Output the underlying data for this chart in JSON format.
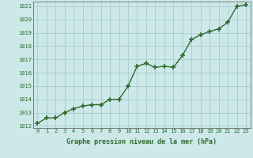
{
  "x": [
    0,
    1,
    2,
    3,
    4,
    5,
    6,
    7,
    8,
    9,
    10,
    11,
    12,
    13,
    14,
    15,
    16,
    17,
    18,
    19,
    20,
    21,
    22,
    23
  ],
  "y": [
    1012.2,
    1012.6,
    1012.6,
    1013.0,
    1013.3,
    1013.5,
    1013.6,
    1013.6,
    1014.0,
    1014.0,
    1015.0,
    1016.5,
    1016.7,
    1016.4,
    1016.5,
    1016.4,
    1017.3,
    1018.5,
    1018.85,
    1019.1,
    1019.3,
    1019.8,
    1021.0,
    1021.1
  ],
  "line_color": "#2d6a2d",
  "marker_color": "#2d6a2d",
  "bg_color": "#cce8e8",
  "grid_color": "#aacccc",
  "xlabel": "Graphe pression niveau de la mer (hPa)",
  "xlabel_color": "#2d6a2d",
  "tick_color": "#2d6a2d",
  "ylim_min": 1012,
  "ylim_max": 1021,
  "yticks": [
    1012,
    1013,
    1014,
    1015,
    1016,
    1017,
    1018,
    1019,
    1020,
    1021
  ],
  "xticks": [
    0,
    1,
    2,
    3,
    4,
    5,
    6,
    7,
    8,
    9,
    10,
    11,
    12,
    13,
    14,
    15,
    16,
    17,
    18,
    19,
    20,
    21,
    22,
    23
  ],
  "marker_size": 2.5,
  "line_width": 1.0
}
